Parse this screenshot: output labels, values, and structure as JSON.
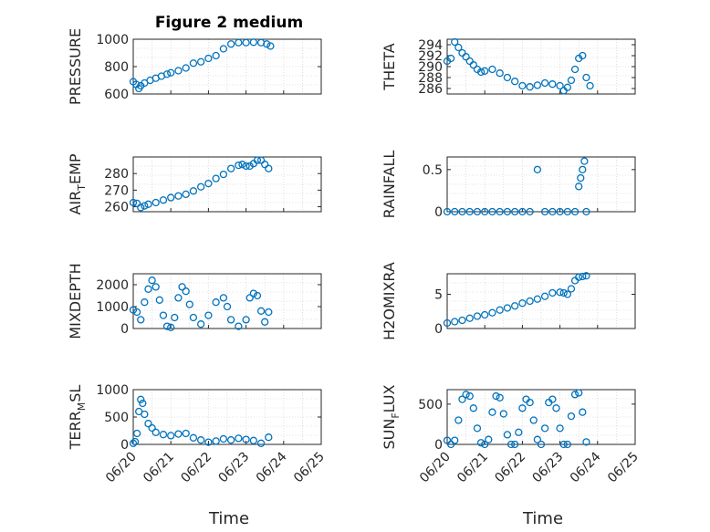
{
  "title": "Figure 2 medium",
  "x_ticks": [
    "06/20",
    "06/21",
    "06/22",
    "06/23",
    "06/24",
    "06/25"
  ],
  "x_label": "Time",
  "marker_color": "#0072BD",
  "chart_data": [
    {
      "type": "scatter",
      "panel": "pressure",
      "title": "Figure 2 medium",
      "ylabel": "PRESSURE",
      "ylim": [
        600,
        1000
      ],
      "yticks": [
        600,
        800,
        1000
      ],
      "xlim": [
        0,
        5
      ],
      "grid": "on",
      "marker": "open-circle",
      "x": [
        0,
        0.08,
        0.15,
        0.2,
        0.3,
        0.45,
        0.6,
        0.75,
        0.9,
        1.0,
        1.2,
        1.4,
        1.6,
        1.8,
        2.0,
        2.2,
        2.4,
        2.6,
        2.8,
        3.0,
        3.2,
        3.4,
        3.55,
        3.65
      ],
      "y": [
        690,
        670,
        640,
        660,
        680,
        700,
        715,
        730,
        745,
        755,
        770,
        790,
        825,
        835,
        860,
        880,
        930,
        965,
        975,
        975,
        978,
        975,
        965,
        950
      ]
    },
    {
      "type": "scatter",
      "panel": "theta",
      "ylabel": "THETA",
      "ylim": [
        285,
        295
      ],
      "yticks": [
        286,
        288,
        290,
        292,
        294
      ],
      "xlim": [
        0,
        5
      ],
      "grid": "on",
      "marker": "open-circle",
      "x": [
        0,
        0.1,
        0.2,
        0.3,
        0.4,
        0.5,
        0.6,
        0.7,
        0.8,
        0.9,
        1.0,
        1.2,
        1.4,
        1.6,
        1.8,
        2.0,
        2.2,
        2.4,
        2.6,
        2.8,
        3.0,
        3.1,
        3.2,
        3.3,
        3.4,
        3.5,
        3.6,
        3.7,
        3.8
      ],
      "y": [
        291,
        291.5,
        294.5,
        293.5,
        292.5,
        291.8,
        291,
        290.3,
        289.5,
        289,
        289.2,
        289.5,
        288.8,
        288,
        287.3,
        286.5,
        286.3,
        286.6,
        287,
        286.8,
        286.5,
        285.6,
        286.2,
        287.5,
        289.5,
        291.5,
        292,
        288,
        286.5
      ]
    },
    {
      "type": "scatter",
      "panel": "air-temp",
      "ylabel": "AIR_TEMP",
      "ylim": [
        257,
        290
      ],
      "yticks": [
        260,
        270,
        280
      ],
      "xlim": [
        0,
        5
      ],
      "grid": "on",
      "marker": "open-circle",
      "x": [
        0,
        0.1,
        0.2,
        0.3,
        0.4,
        0.6,
        0.8,
        1.0,
        1.2,
        1.4,
        1.6,
        1.8,
        2.0,
        2.2,
        2.4,
        2.6,
        2.8,
        2.9,
        3.0,
        3.1,
        3.2,
        3.3,
        3.4,
        3.5,
        3.6
      ],
      "y": [
        262.5,
        262,
        259.5,
        260.5,
        261.5,
        262.5,
        264,
        265.5,
        266.5,
        267.5,
        269.5,
        272,
        274,
        277,
        279.5,
        283,
        285,
        285.5,
        284.5,
        284.5,
        286,
        288,
        288,
        285.5,
        283
      ]
    },
    {
      "type": "scatter",
      "panel": "rainfall",
      "ylabel": "RAINFALL",
      "ylim": [
        0,
        0.65
      ],
      "yticks": [
        0,
        0.5
      ],
      "xlim": [
        0,
        5
      ],
      "grid": "on",
      "marker": "open-circle",
      "x": [
        0,
        0.2,
        0.4,
        0.6,
        0.8,
        1.0,
        1.2,
        1.4,
        1.6,
        1.8,
        2.0,
        2.2,
        2.4,
        2.6,
        2.8,
        3.0,
        3.2,
        3.4,
        3.5,
        3.55,
        3.6,
        3.65,
        3.7
      ],
      "y": [
        0,
        0,
        0,
        0,
        0,
        0,
        0,
        0,
        0,
        0,
        0,
        0,
        0.5,
        0,
        0,
        0,
        0,
        0,
        0.3,
        0.4,
        0.5,
        0.6,
        0
      ]
    },
    {
      "type": "scatter",
      "panel": "mixdepth",
      "ylabel": "MIXDEPTH",
      "ylim": [
        0,
        2500
      ],
      "yticks": [
        0,
        1000,
        2000
      ],
      "xlim": [
        0,
        5
      ],
      "grid": "on",
      "marker": "open-circle",
      "x": [
        0,
        0.1,
        0.2,
        0.3,
        0.4,
        0.5,
        0.6,
        0.7,
        0.8,
        0.9,
        1.0,
        1.1,
        1.2,
        1.3,
        1.4,
        1.5,
        1.6,
        1.8,
        2.0,
        2.2,
        2.4,
        2.5,
        2.6,
        2.8,
        3.0,
        3.1,
        3.2,
        3.3,
        3.4,
        3.5,
        3.6
      ],
      "y": [
        850,
        750,
        400,
        1200,
        1800,
        2200,
        1900,
        1300,
        600,
        100,
        50,
        500,
        1400,
        1900,
        1700,
        1100,
        500,
        200,
        600,
        1200,
        1400,
        1000,
        400,
        100,
        400,
        1400,
        1600,
        1500,
        800,
        300,
        750
      ]
    },
    {
      "type": "scatter",
      "panel": "h2o-mixra",
      "ylabel": "H2OMIXRA",
      "ylim": [
        0,
        8
      ],
      "yticks": [
        0,
        5
      ],
      "xlim": [
        0,
        5
      ],
      "grid": "on",
      "marker": "open-circle",
      "x": [
        0,
        0.2,
        0.4,
        0.6,
        0.8,
        1.0,
        1.2,
        1.4,
        1.6,
        1.8,
        2.0,
        2.2,
        2.4,
        2.6,
        2.8,
        3.0,
        3.1,
        3.2,
        3.3,
        3.4,
        3.5,
        3.6,
        3.7
      ],
      "y": [
        0.8,
        1,
        1.2,
        1.5,
        1.8,
        2,
        2.3,
        2.7,
        3,
        3.3,
        3.7,
        4,
        4.3,
        4.7,
        5.2,
        5.3,
        5.2,
        5,
        5.8,
        7,
        7.5,
        7.6,
        7.7
      ]
    },
    {
      "type": "scatter",
      "panel": "terr-msl",
      "ylabel": "TERR_MSL",
      "ylim": [
        0,
        1000
      ],
      "yticks": [
        0,
        500,
        1000
      ],
      "xlim": [
        0,
        5
      ],
      "grid": "on",
      "marker": "open-circle",
      "x": [
        0,
        0.05,
        0.1,
        0.15,
        0.2,
        0.25,
        0.3,
        0.4,
        0.5,
        0.6,
        0.8,
        1.0,
        1.2,
        1.4,
        1.6,
        1.8,
        2.0,
        2.2,
        2.4,
        2.6,
        2.8,
        3.0,
        3.2,
        3.4,
        3.6
      ],
      "y": [
        20,
        50,
        200,
        600,
        820,
        750,
        550,
        380,
        300,
        220,
        180,
        160,
        190,
        200,
        120,
        80,
        40,
        60,
        100,
        80,
        110,
        90,
        70,
        20,
        130
      ]
    },
    {
      "type": "scatter",
      "panel": "sun-flux",
      "ylabel": "SUN_FLUX",
      "ylim": [
        0,
        680
      ],
      "yticks": [
        0,
        500
      ],
      "xlim": [
        0,
        5
      ],
      "grid": "on",
      "marker": "open-circle",
      "x": [
        0,
        0.1,
        0.2,
        0.3,
        0.4,
        0.5,
        0.6,
        0.7,
        0.8,
        0.9,
        1.0,
        1.1,
        1.2,
        1.3,
        1.4,
        1.5,
        1.6,
        1.7,
        1.8,
        1.9,
        2.0,
        2.1,
        2.2,
        2.3,
        2.4,
        2.5,
        2.6,
        2.7,
        2.8,
        2.9,
        3.0,
        3.1,
        3.2,
        3.3,
        3.4,
        3.5,
        3.6,
        3.7
      ],
      "y": [
        50,
        0,
        50,
        300,
        560,
        620,
        600,
        450,
        200,
        20,
        0,
        60,
        400,
        600,
        580,
        380,
        120,
        0,
        0,
        150,
        450,
        560,
        520,
        300,
        60,
        0,
        200,
        520,
        560,
        450,
        200,
        0,
        0,
        350,
        620,
        640,
        400,
        30
      ]
    }
  ]
}
